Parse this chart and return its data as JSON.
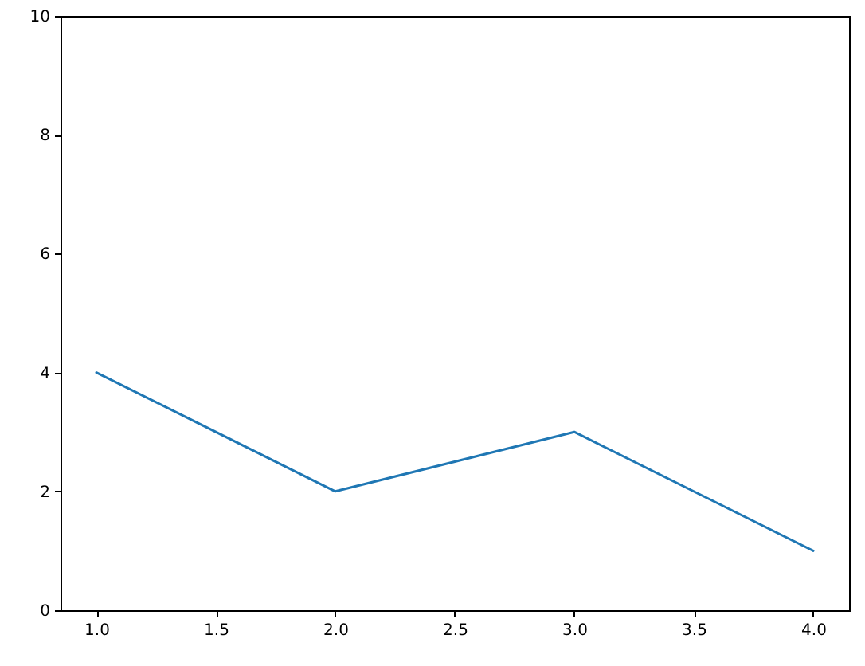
{
  "chart_data": {
    "type": "line",
    "x": [
      1,
      2,
      3,
      4
    ],
    "series": [
      {
        "color": "#1f77b4",
        "values": [
          4,
          2,
          3,
          1
        ]
      }
    ],
    "xlim": [
      0.85,
      4.15
    ],
    "xticks": [
      {
        "value": 1,
        "label": "1.0"
      },
      {
        "value": 1.5,
        "label": "1.5"
      },
      {
        "value": 2,
        "label": "2.0"
      },
      {
        "value": 2.5,
        "label": "2.5"
      },
      {
        "value": 3,
        "label": "3.0"
      },
      {
        "value": 3.5,
        "label": "3.5"
      },
      {
        "value": 4,
        "label": "4.0"
      }
    ],
    "ylim": [
      0,
      10
    ],
    "yticks": [
      0,
      2,
      4,
      6,
      8,
      10
    ],
    "grid": false,
    "line_style": "solid"
  }
}
